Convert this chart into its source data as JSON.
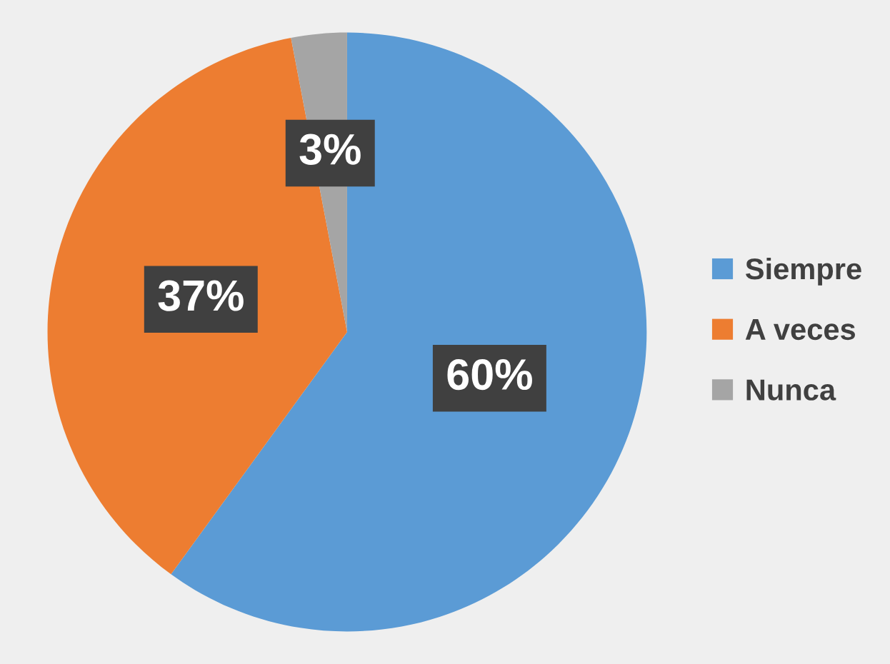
{
  "chart_data": {
    "type": "pie",
    "categories": [
      "Siempre",
      "A veces",
      "Nunca"
    ],
    "values": [
      60,
      37,
      3
    ],
    "colors": [
      "#5b9bd5",
      "#ed7d31",
      "#a5a5a5"
    ],
    "value_labels": [
      "60%",
      "37%",
      "3%"
    ],
    "legend": "right"
  }
}
